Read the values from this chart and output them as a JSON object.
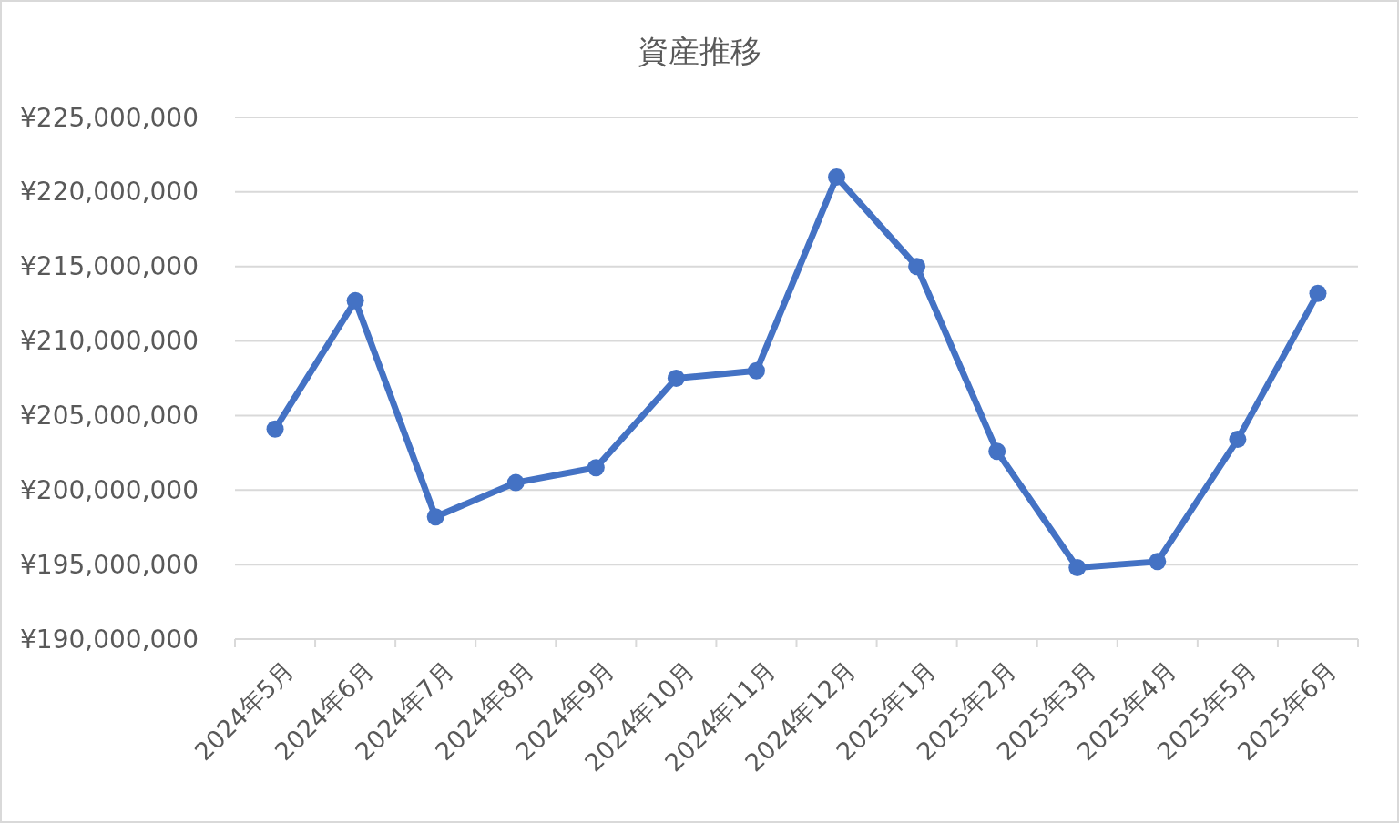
{
  "chart_data": {
    "type": "line",
    "title": "資産推移",
    "categories": [
      "2024年5月",
      "2024年6月",
      "2024年7月",
      "2024年8月",
      "2024年9月",
      "2024年10月",
      "2024年11月",
      "2024年12月",
      "2025年1月",
      "2025年2月",
      "2025年3月",
      "2025年4月",
      "2025年5月",
      "2025年6月"
    ],
    "series": [
      {
        "color": "#4472c4",
        "values": [
          204100000,
          212700000,
          198200000,
          200500000,
          201500000,
          207500000,
          208000000,
          221000000,
          215000000,
          202600000,
          194800000,
          195200000,
          203400000,
          213200000
        ]
      }
    ],
    "ylim": [
      190000000,
      225000000
    ],
    "yticks": [
      {
        "value": 190000000,
        "label": "¥190,000,000"
      },
      {
        "value": 195000000,
        "label": "¥195,000,000"
      },
      {
        "value": 200000000,
        "label": "¥200,000,000"
      },
      {
        "value": 205000000,
        "label": "¥205,000,000"
      },
      {
        "value": 210000000,
        "label": "¥210,000,000"
      },
      {
        "value": 215000000,
        "label": "¥215,000,000"
      },
      {
        "value": 220000000,
        "label": "¥220,000,000"
      },
      {
        "value": 225000000,
        "label": "¥225,000,000"
      }
    ],
    "grid": "y",
    "marker": "circle",
    "line_style": "solid"
  }
}
